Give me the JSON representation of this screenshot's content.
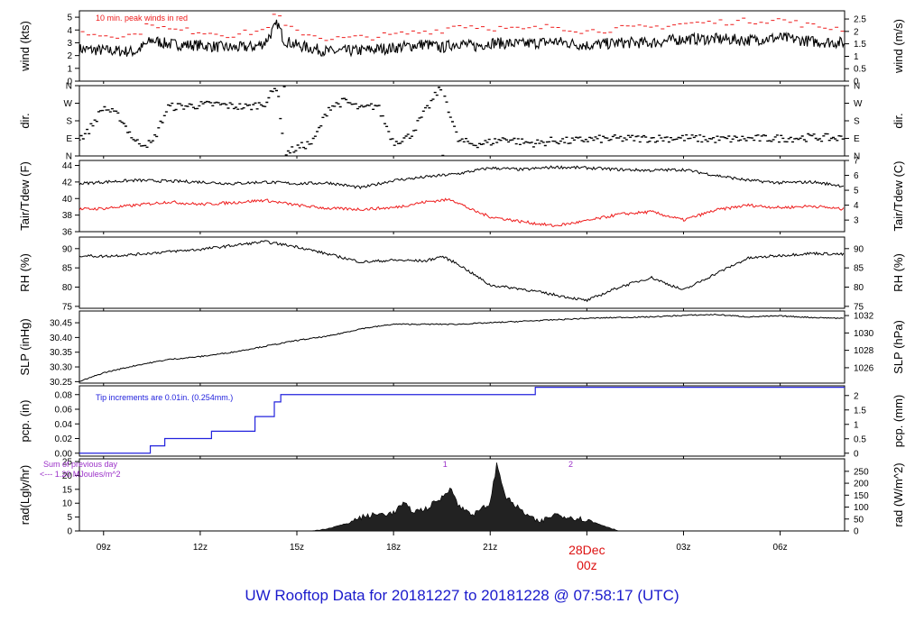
{
  "title": "UW Rooftop Data for 20181227  to  20181228 @ 07:58:17  (UTC)",
  "colors": {
    "title": "#1a1acc",
    "primary": "#000000",
    "secondary": "#ee1c1c",
    "precip": "#2222dd",
    "annot": "#9b30c8",
    "date": "#dd1111"
  },
  "time_axis": {
    "start_hour": 8.25,
    "end_hour": 32.0,
    "ticks": [
      {
        "hour": 9,
        "label": "09z"
      },
      {
        "hour": 12,
        "label": "12z"
      },
      {
        "hour": 15,
        "label": "15z"
      },
      {
        "hour": 18,
        "label": "18z"
      },
      {
        "hour": 21,
        "label": "21z"
      },
      {
        "hour": 24,
        "label": "00z"
      },
      {
        "hour": 27,
        "label": "03z"
      },
      {
        "hour": 30,
        "label": "06z"
      }
    ],
    "date_label": "28Dec",
    "date_hour": 24
  },
  "chart_data": [
    {
      "type": "line",
      "id": "wind",
      "left_label": "wind (kts)",
      "right_label": "wind (m/s)",
      "ylim": [
        0,
        5.5
      ],
      "left_ticks": [
        {
          "v": 0,
          "t": "0"
        },
        {
          "v": 1,
          "t": "1"
        },
        {
          "v": 2,
          "t": "2"
        },
        {
          "v": 3,
          "t": "3"
        },
        {
          "v": 4,
          "t": "4"
        },
        {
          "v": 5,
          "t": "5"
        }
      ],
      "right_ticks": [
        {
          "v": 0,
          "t": "0"
        },
        {
          "v": 0.97,
          "t": "0.5"
        },
        {
          "v": 1.94,
          "t": "1"
        },
        {
          "v": 2.92,
          "t": "1.5"
        },
        {
          "v": 3.89,
          "t": "2"
        },
        {
          "v": 4.86,
          "t": "2.5"
        }
      ],
      "annotation": "10 min. peak winds in red",
      "series": [
        {
          "role": "mean wind",
          "x": [
            8.25,
            9,
            10,
            10.5,
            11,
            12,
            13,
            13.7,
            14,
            14.4,
            14.6,
            15,
            16,
            17,
            18,
            19,
            19.5,
            20,
            20.5,
            21,
            22,
            23,
            24,
            25,
            26,
            27,
            28,
            29,
            30,
            31,
            32
          ],
          "y": [
            2.5,
            2.4,
            2.3,
            3.2,
            2.9,
            2.8,
            2.6,
            2.7,
            3.0,
            4.5,
            3.2,
            2.8,
            2.3,
            2.4,
            2.6,
            2.9,
            2.6,
            3.0,
            2.7,
            3.0,
            2.9,
            3.1,
            2.8,
            3.0,
            3.0,
            3.3,
            3.3,
            3.2,
            3.4,
            3.1,
            3.0
          ]
        },
        {
          "role": "10 min. peak winds",
          "x": [
            8.25,
            9,
            10,
            10.5,
            11,
            12,
            13,
            14,
            14.4,
            14.6,
            15,
            16,
            17,
            18,
            19,
            19.5,
            20,
            21,
            22,
            23,
            24,
            25,
            26,
            27,
            28,
            29,
            30,
            31,
            32
          ],
          "y": [
            3.8,
            3.6,
            3.6,
            4.6,
            4.0,
            3.9,
            3.6,
            4.0,
            5.4,
            4.3,
            3.9,
            3.3,
            3.4,
            3.6,
            3.9,
            4.0,
            4.4,
            4.2,
            4.0,
            4.3,
            3.9,
            4.1,
            4.2,
            4.5,
            4.6,
            4.7,
            4.8,
            4.3,
            4.1
          ]
        }
      ]
    },
    {
      "type": "scatter",
      "id": "dir",
      "left_label": "dir.",
      "right_label": "dir.",
      "ylim": [
        0,
        360
      ],
      "left_ticks": [
        {
          "v": 0,
          "t": "N"
        },
        {
          "v": 90,
          "t": "E"
        },
        {
          "v": 180,
          "t": "S"
        },
        {
          "v": 270,
          "t": "W"
        },
        {
          "v": 360,
          "t": "N"
        }
      ],
      "right_ticks": [
        {
          "v": 0,
          "t": "N"
        },
        {
          "v": 90,
          "t": "E"
        },
        {
          "v": 180,
          "t": "S"
        },
        {
          "v": 270,
          "t": "W"
        },
        {
          "v": 360,
          "t": "N"
        }
      ],
      "series": [
        {
          "role": "direction",
          "x": [
            8.25,
            8.5,
            9.0,
            9.5,
            10.0,
            10.5,
            11.0,
            11.5,
            12.0,
            12.5,
            13.0,
            13.5,
            14.0,
            14.4,
            14.6,
            15.0,
            15.5,
            16.0,
            16.5,
            17.0,
            17.5,
            18.0,
            18.5,
            19.0,
            19.5,
            20.0,
            20.5,
            21.0,
            21.5,
            22.0,
            22.5,
            23.0,
            23.5,
            24.0,
            25.0,
            26.0,
            27.0,
            28.0,
            29.0,
            30.0,
            31.0,
            32.0
          ],
          "y": [
            90,
            120,
            250,
            200,
            70,
            60,
            250,
            255,
            260,
            265,
            255,
            250,
            270,
            360,
            10,
            40,
            70,
            250,
            280,
            240,
            260,
            70,
            100,
            230,
            360,
            80,
            60,
            70,
            90,
            70,
            65,
            80,
            75,
            85,
            88,
            90,
            92,
            85,
            88,
            90,
            95,
            90
          ]
        }
      ]
    },
    {
      "type": "line",
      "id": "temp",
      "left_label": "Tair/Tdew (F)",
      "right_label": "Tair/Tdew (C)",
      "ylim": [
        36,
        44.6
      ],
      "left_ticks": [
        {
          "v": 36,
          "t": "36"
        },
        {
          "v": 38,
          "t": "38"
        },
        {
          "v": 40,
          "t": "40"
        },
        {
          "v": 42,
          "t": "42"
        },
        {
          "v": 44,
          "t": "44"
        }
      ],
      "right_ticks": [
        {
          "v": 37.4,
          "t": "3"
        },
        {
          "v": 39.2,
          "t": "4"
        },
        {
          "v": 41.0,
          "t": "5"
        },
        {
          "v": 42.8,
          "t": "6"
        },
        {
          "v": 44.6,
          "t": "7"
        }
      ],
      "series": [
        {
          "role": "Tair",
          "x": [
            8.25,
            9,
            10,
            11,
            12,
            13,
            14,
            15,
            16,
            17,
            18,
            19,
            20,
            21,
            22,
            23,
            24,
            25,
            26,
            27,
            28,
            29,
            30,
            31,
            32
          ],
          "y": [
            41.8,
            42.0,
            42.2,
            42.1,
            42.0,
            41.8,
            42.0,
            41.8,
            41.9,
            41.3,
            42.2,
            42.6,
            43.0,
            43.7,
            43.5,
            43.8,
            43.7,
            43.5,
            43.4,
            43.5,
            42.8,
            42.2,
            41.9,
            42.0,
            41.5
          ]
        },
        {
          "role": "Tdew",
          "x": [
            8.25,
            9,
            10,
            11,
            12,
            13,
            14,
            15,
            16,
            17,
            18,
            19,
            19.8,
            20.5,
            21,
            22,
            23,
            24,
            25,
            26,
            27,
            28,
            29,
            30,
            31,
            32
          ],
          "y": [
            38.7,
            38.8,
            39.2,
            39.6,
            39.3,
            39.5,
            39.8,
            39.2,
            38.8,
            38.7,
            38.9,
            39.6,
            39.9,
            38.5,
            37.8,
            37.2,
            36.7,
            37.3,
            38.1,
            38.4,
            37.4,
            38.6,
            39.2,
            38.9,
            39.1,
            38.7
          ]
        }
      ]
    },
    {
      "type": "line",
      "id": "rh",
      "left_label": "RH (%)",
      "right_label": "RH (%)",
      "ylim": [
        74.5,
        93
      ],
      "left_ticks": [
        {
          "v": 75,
          "t": "75"
        },
        {
          "v": 80,
          "t": "80"
        },
        {
          "v": 85,
          "t": "85"
        },
        {
          "v": 90,
          "t": "90"
        }
      ],
      "right_ticks": [
        {
          "v": 75,
          "t": "75"
        },
        {
          "v": 80,
          "t": "80"
        },
        {
          "v": 85,
          "t": "85"
        },
        {
          "v": 90,
          "t": "90"
        }
      ],
      "series": [
        {
          "role": "RH",
          "x": [
            8.25,
            9,
            10,
            11,
            12,
            13,
            14,
            15,
            16,
            17,
            18,
            19,
            19.5,
            20,
            21,
            22,
            23,
            24,
            25,
            26,
            27,
            28,
            29,
            30,
            31,
            32
          ],
          "y": [
            88.2,
            88.0,
            88.5,
            89.2,
            89.8,
            90.8,
            91.8,
            90.5,
            88.5,
            86.5,
            87.0,
            86.8,
            88.0,
            86.0,
            80.5,
            79.5,
            78.0,
            76.5,
            80.0,
            82.5,
            79.2,
            83.5,
            87.5,
            88.2,
            88.8,
            88.5
          ]
        }
      ]
    },
    {
      "type": "line",
      "id": "slp",
      "left_label": "SLP (inHg)",
      "right_label": "SLP (hPa)",
      "ylim": [
        30.245,
        30.49
      ],
      "left_ticks": [
        {
          "v": 30.25,
          "t": "30.25"
        },
        {
          "v": 30.3,
          "t": "30.30"
        },
        {
          "v": 30.35,
          "t": "30.35"
        },
        {
          "v": 30.4,
          "t": "30.40"
        },
        {
          "v": 30.45,
          "t": "30.45"
        }
      ],
      "right_ticks": [
        {
          "v": 30.2973,
          "t": "1026"
        },
        {
          "v": 30.3564,
          "t": "1028"
        },
        {
          "v": 30.4154,
          "t": "1030"
        },
        {
          "v": 30.4745,
          "t": "1032"
        }
      ],
      "series": [
        {
          "role": "SLP",
          "x": [
            8.25,
            9,
            10,
            11,
            12,
            13,
            14,
            15,
            16,
            17,
            18,
            19,
            20,
            21,
            22,
            23,
            24,
            25,
            26,
            27,
            28,
            29,
            30,
            31,
            32
          ],
          "y": [
            30.25,
            30.28,
            30.305,
            30.325,
            30.335,
            30.35,
            30.37,
            30.39,
            30.405,
            30.43,
            30.445,
            30.445,
            30.445,
            30.45,
            30.455,
            30.46,
            30.465,
            30.468,
            30.47,
            30.475,
            30.478,
            30.47,
            30.473,
            30.468,
            30.465
          ]
        }
      ]
    },
    {
      "type": "line",
      "id": "pcp",
      "left_label": "pcp. (in)",
      "right_label": "pcp. (mm)",
      "ylim": [
        -0.004,
        0.092
      ],
      "left_ticks": [
        {
          "v": 0,
          "t": "0.00"
        },
        {
          "v": 0.02,
          "t": "0.02"
        },
        {
          "v": 0.04,
          "t": "0.04"
        },
        {
          "v": 0.06,
          "t": "0.06"
        },
        {
          "v": 0.08,
          "t": "0.08"
        }
      ],
      "right_ticks": [
        {
          "v": 0,
          "t": "0"
        },
        {
          "v": 0.01969,
          "t": "0.5"
        },
        {
          "v": 0.03937,
          "t": "1"
        },
        {
          "v": 0.05906,
          "t": "1.5"
        },
        {
          "v": 0.07874,
          "t": "2"
        }
      ],
      "annotation": "Tip increments are 0.01in. (0.254mm.)",
      "series": [
        {
          "role": "precip",
          "step": true,
          "x": [
            8.25,
            10.45,
            10.9,
            12.35,
            13.7,
            14.3,
            14.5,
            22.4,
            32.0
          ],
          "y": [
            0,
            0.01,
            0.02,
            0.03,
            0.05,
            0.07,
            0.08,
            0.09,
            0.09
          ]
        }
      ]
    },
    {
      "type": "area",
      "id": "rad",
      "left_label": "rad(Lgly/hr)",
      "right_label": "rad (W/m^2)",
      "ylim": [
        0,
        26
      ],
      "left_ticks": [
        {
          "v": 0,
          "t": "0"
        },
        {
          "v": 5,
          "t": "5"
        },
        {
          "v": 10,
          "t": "10"
        },
        {
          "v": 15,
          "t": "15"
        },
        {
          "v": 20,
          "t": "20"
        },
        {
          "v": 25,
          "t": "25"
        }
      ],
      "right_ticks": [
        {
          "v": 0,
          "t": "0"
        },
        {
          "v": 4.3,
          "t": "50"
        },
        {
          "v": 8.6,
          "t": "100"
        },
        {
          "v": 12.9,
          "t": "150"
        },
        {
          "v": 17.2,
          "t": "200"
        },
        {
          "v": 21.5,
          "t": "250"
        }
      ],
      "annotations": [
        "Sum of previous day",
        "<--- 1.20 MJoules/m^2",
        "1",
        "2"
      ],
      "annotation_hours": [
        19.6,
        23.5
      ],
      "series": [
        {
          "role": "radiation",
          "x": [
            8.25,
            15.5,
            16.0,
            16.5,
            17.0,
            17.5,
            18.0,
            18.3,
            18.6,
            19.0,
            19.5,
            19.8,
            20.0,
            20.5,
            21.0,
            21.2,
            21.5,
            22.0,
            22.5,
            23.0,
            23.5,
            24.0,
            24.5,
            25.0,
            32.0
          ],
          "y": [
            0,
            0,
            1,
            2.5,
            5,
            6,
            6.5,
            10,
            7,
            8,
            12,
            16,
            9,
            6,
            10,
            24,
            12,
            7,
            3,
            6,
            5,
            4,
            2,
            0,
            0
          ]
        }
      ]
    }
  ]
}
